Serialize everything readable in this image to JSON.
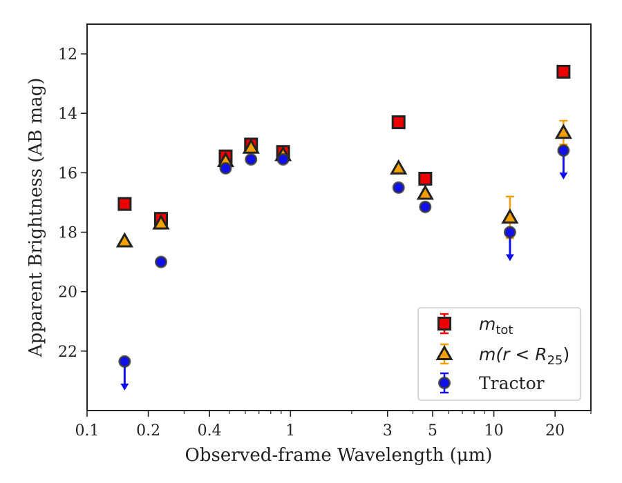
{
  "chart_data": {
    "type": "scatter",
    "xscale": "log",
    "yaxis_inverted": true,
    "xlim": [
      0.1,
      30
    ],
    "ylim": [
      24,
      11
    ],
    "xlabel": "Observed-frame Wavelength (μm)",
    "ylabel": "Apparent Brightness (AB mag)",
    "xtick_labels": [
      {
        "value": 0.1,
        "label": "0.1"
      },
      {
        "value": 0.2,
        "label": "0.2"
      },
      {
        "value": 0.4,
        "label": "0.4"
      },
      {
        "value": 1,
        "label": "1"
      },
      {
        "value": 3,
        "label": "3"
      },
      {
        "value": 5,
        "label": "5"
      },
      {
        "value": 10,
        "label": "10"
      },
      {
        "value": 20,
        "label": "20"
      }
    ],
    "ytick_labels": [
      {
        "value": 12,
        "label": "12"
      },
      {
        "value": 14,
        "label": "14"
      },
      {
        "value": 16,
        "label": "16"
      },
      {
        "value": 18,
        "label": "18"
      },
      {
        "value": 20,
        "label": "20"
      },
      {
        "value": 22,
        "label": "22"
      }
    ],
    "legend_position": "lower-right",
    "series": [
      {
        "key": "mtot",
        "marker": "square",
        "color": "#ee0000",
        "x": [
          0.153,
          0.231,
          0.48,
          0.64,
          0.92,
          3.4,
          4.6,
          12,
          22
        ],
        "y": [
          17.05,
          17.55,
          15.45,
          15.05,
          15.3,
          14.3,
          16.2,
          null,
          12.6
        ]
      },
      {
        "key": "mr25",
        "marker": "triangle",
        "color": "#f5a000",
        "x": [
          0.153,
          0.231,
          0.48,
          0.64,
          0.92,
          3.4,
          4.6,
          12,
          22
        ],
        "y": [
          18.3,
          17.7,
          15.6,
          15.15,
          15.4,
          15.85,
          16.7,
          17.5,
          14.65
        ],
        "yerr": [
          0.05,
          0.05,
          0.05,
          0.05,
          0.05,
          0.05,
          0.05,
          0.7,
          0.4
        ]
      },
      {
        "key": "tractor",
        "marker": "circle",
        "color": "#1010ee",
        "x": [
          0.153,
          0.231,
          0.48,
          0.64,
          0.92,
          3.4,
          4.6,
          12,
          22
        ],
        "y": [
          22.35,
          19.0,
          15.85,
          15.55,
          15.55,
          16.5,
          17.15,
          18.0,
          15.25
        ],
        "upper_limit": [
          true,
          false,
          false,
          false,
          false,
          false,
          false,
          true,
          true
        ]
      }
    ],
    "legend": [
      {
        "key": "mtot",
        "base": "m",
        "sub": "tot",
        "rest": ""
      },
      {
        "key": "mr25",
        "base": "m",
        "sub": "",
        "rest": "(r < R",
        "sub2": "25",
        "close": ")"
      },
      {
        "key": "tractor",
        "label": "Tractor"
      }
    ]
  }
}
